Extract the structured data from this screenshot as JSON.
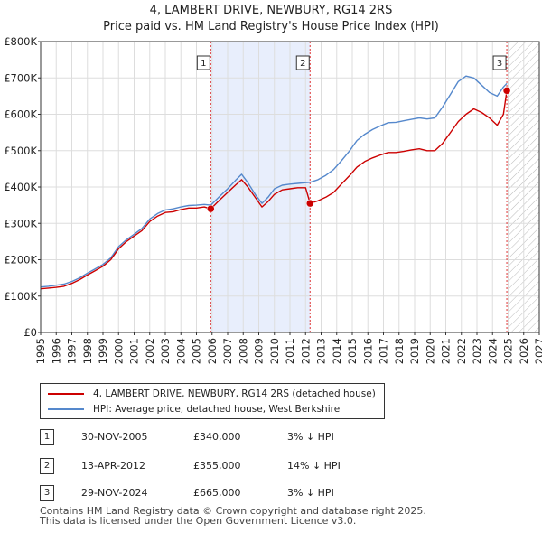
{
  "header": {
    "title": "4, LAMBERT DRIVE, NEWBURY, RG14 2RS",
    "subtitle": "Price paid vs. HM Land Registry's House Price Index (HPI)"
  },
  "chart_data": {
    "type": "line",
    "xlim": [
      1995,
      2027
    ],
    "ylim": [
      0,
      800000
    ],
    "yticks": [
      0,
      100000,
      200000,
      300000,
      400000,
      500000,
      600000,
      700000,
      800000
    ],
    "ytick_labels": [
      "£0",
      "£100K",
      "£200K",
      "£300K",
      "£400K",
      "£500K",
      "£600K",
      "£700K",
      "£800K"
    ],
    "xticks": [
      "1995",
      "1996",
      "1997",
      "1998",
      "1999",
      "2000",
      "2001",
      "2002",
      "2003",
      "2004",
      "2005",
      "2006",
      "2007",
      "2008",
      "2009",
      "2010",
      "2011",
      "2012",
      "2013",
      "2014",
      "2015",
      "2016",
      "2017",
      "2018",
      "2019",
      "2020",
      "2021",
      "2022",
      "2023",
      "2024",
      "2025",
      "2026",
      "2027"
    ],
    "colors": {
      "property": "#cc0000",
      "hpi": "#5588cc",
      "shade": "#e8eefc",
      "marker": "#cc0000"
    },
    "shaded_period": [
      2005.917,
      2012.29
    ],
    "hatched_from": 2025.0,
    "series": [
      {
        "name": "4, LAMBERT DRIVE, NEWBURY, RG14 2RS (detached house)",
        "color": "#cc0000",
        "x": [
          1995.0,
          1995.5,
          1996.0,
          1996.5,
          1997.0,
          1997.5,
          1998.0,
          1998.5,
          1999.0,
          1999.5,
          2000.0,
          2000.5,
          2001.0,
          2001.5,
          2002.0,
          2002.5,
          2003.0,
          2003.5,
          2004.0,
          2004.5,
          2005.0,
          2005.5,
          2005.917,
          2006.5,
          2007.0,
          2007.5,
          2007.9,
          2008.3,
          2008.8,
          2009.2,
          2009.6,
          2010.0,
          2010.5,
          2011.0,
          2011.5,
          2012.0,
          2012.29,
          2012.8,
          2013.3,
          2013.8,
          2014.3,
          2014.8,
          2015.3,
          2015.8,
          2016.3,
          2016.8,
          2017.3,
          2017.8,
          2018.3,
          2018.8,
          2019.3,
          2019.8,
          2020.3,
          2020.8,
          2021.3,
          2021.8,
          2022.3,
          2022.8,
          2023.3,
          2023.8,
          2024.3,
          2024.7,
          2024.917
        ],
        "values": [
          120000,
          122000,
          124000,
          127000,
          135000,
          145000,
          158000,
          170000,
          182000,
          200000,
          230000,
          250000,
          265000,
          280000,
          305000,
          320000,
          330000,
          332000,
          338000,
          342000,
          342000,
          345000,
          340000,
          365000,
          385000,
          405000,
          420000,
          400000,
          370000,
          345000,
          360000,
          380000,
          392000,
          395000,
          398000,
          398000,
          355000,
          362000,
          372000,
          385000,
          408000,
          430000,
          455000,
          470000,
          480000,
          488000,
          495000,
          495000,
          498000,
          502000,
          505000,
          500000,
          500000,
          520000,
          550000,
          580000,
          600000,
          615000,
          605000,
          590000,
          570000,
          600000,
          665000
        ]
      },
      {
        "name": "HPI: Average price, detached house, West Berkshire",
        "color": "#5588cc",
        "x": [
          1995.0,
          1995.5,
          1996.0,
          1996.5,
          1997.0,
          1997.5,
          1998.0,
          1998.5,
          1999.0,
          1999.5,
          2000.0,
          2000.5,
          2001.0,
          2001.5,
          2002.0,
          2002.5,
          2003.0,
          2003.5,
          2004.0,
          2004.5,
          2005.0,
          2005.5,
          2005.917,
          2006.5,
          2007.0,
          2007.5,
          2007.9,
          2008.3,
          2008.8,
          2009.2,
          2009.6,
          2010.0,
          2010.5,
          2011.0,
          2011.5,
          2012.0,
          2012.29,
          2012.8,
          2013.3,
          2013.8,
          2014.3,
          2014.8,
          2015.3,
          2015.8,
          2016.3,
          2016.8,
          2017.3,
          2017.8,
          2018.3,
          2018.8,
          2019.3,
          2019.8,
          2020.3,
          2020.8,
          2021.3,
          2021.8,
          2022.3,
          2022.8,
          2023.3,
          2023.8,
          2024.3,
          2024.7,
          2024.917
        ],
        "values": [
          125000,
          127000,
          130000,
          133000,
          140000,
          150000,
          163000,
          175000,
          187000,
          205000,
          236000,
          255000,
          270000,
          286000,
          312000,
          327000,
          337000,
          340000,
          345000,
          349000,
          350000,
          352000,
          350000,
          375000,
          395000,
          418000,
          435000,
          412000,
          378000,
          355000,
          372000,
          395000,
          405000,
          408000,
          410000,
          412000,
          413000,
          420000,
          432000,
          448000,
          472000,
          498000,
          528000,
          545000,
          558000,
          568000,
          577000,
          578000,
          582000,
          586000,
          590000,
          587000,
          590000,
          620000,
          655000,
          690000,
          705000,
          700000,
          680000,
          660000,
          650000,
          675000,
          685000
        ]
      }
    ],
    "sales": [
      {
        "id": "1",
        "date": "30-NOV-2005",
        "x": 2005.917,
        "price": 340000,
        "price_label": "£340,000",
        "hpi_label": "3% ↓ HPI"
      },
      {
        "id": "2",
        "date": "13-APR-2012",
        "x": 2012.29,
        "price": 355000,
        "price_label": "£355,000",
        "hpi_label": "14% ↓ HPI"
      },
      {
        "id": "3",
        "date": "29-NOV-2024",
        "x": 2024.917,
        "price": 665000,
        "price_label": "£665,000",
        "hpi_label": "3% ↓ HPI"
      }
    ]
  },
  "legend": {
    "property_label": "4, LAMBERT DRIVE, NEWBURY, RG14 2RS (detached house)",
    "hpi_label": "HPI: Average price, detached house, West Berkshire"
  },
  "footer": {
    "line1": "Contains HM Land Registry data © Crown copyright and database right 2025.",
    "line2": "This data is licensed under the Open Government Licence v3.0."
  }
}
